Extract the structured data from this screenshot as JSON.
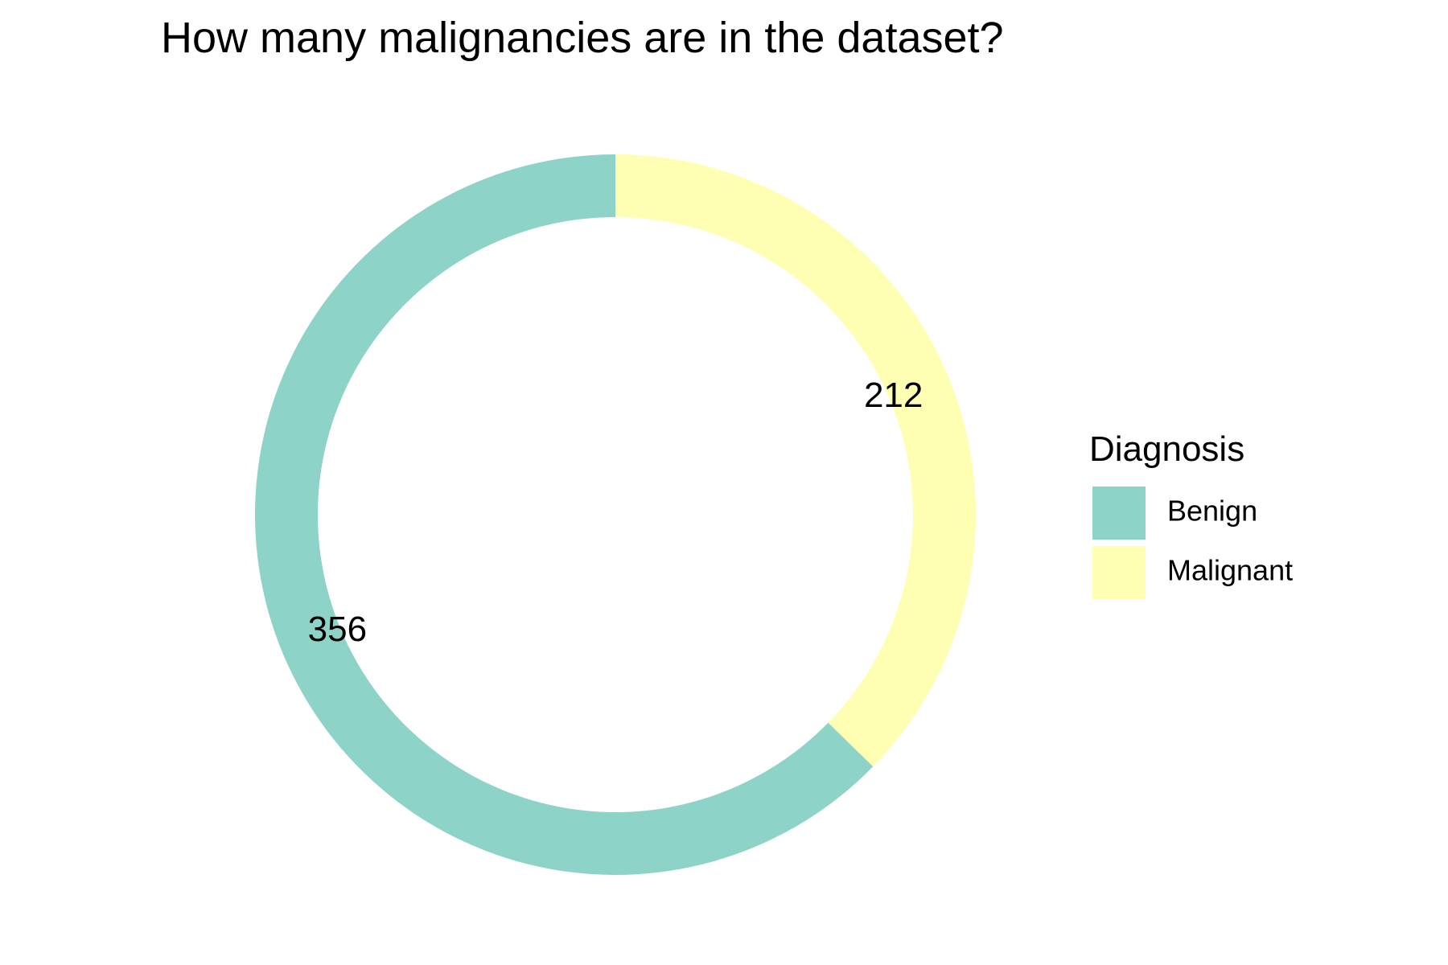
{
  "chart_data": {
    "type": "pie",
    "variant": "donut",
    "title": "How many malignancies are in the dataset?",
    "legend": {
      "title": "Diagnosis",
      "placement": "right"
    },
    "series": [
      {
        "name": "Benign",
        "value": 356,
        "label": "356",
        "color": "#8ED3C7"
      },
      {
        "name": "Malignant",
        "value": 212,
        "label": "212",
        "color": "#FFFFB3"
      }
    ],
    "grid": false
  }
}
